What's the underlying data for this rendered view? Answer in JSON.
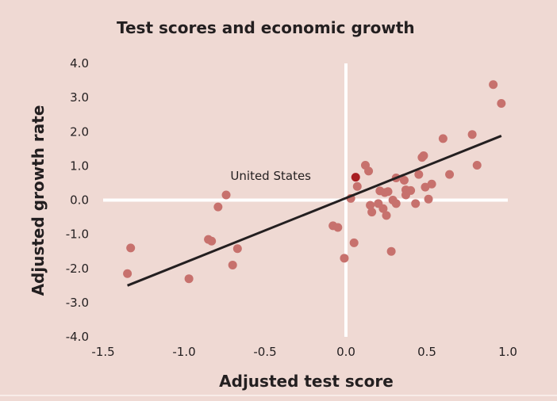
{
  "colors": {
    "background": "#efd9d3",
    "point": "#c7716d",
    "highlight_point": "#a81e22",
    "trend_line": "#231f20",
    "zero_axis": "#ffffff",
    "text": "#231f20"
  },
  "chart_data": {
    "type": "scatter",
    "title": "Test scores and economic growth",
    "xlabel": "Adjusted test score",
    "ylabel": "Adjusted growth rate",
    "xlim": [
      -1.5,
      1.0
    ],
    "ylim": [
      -4.0,
      4.0
    ],
    "x_ticks": [
      -1.5,
      -1.0,
      -0.5,
      0.0,
      0.5,
      1.0
    ],
    "x_tick_labels": [
      "-1.5",
      "-1.0",
      "-0.5",
      "0.0",
      "0.5",
      "1.0"
    ],
    "y_ticks": [
      4.0,
      3.0,
      2.0,
      1.0,
      0.0,
      -1.0,
      -2.0,
      -3.0,
      -4.0
    ],
    "y_tick_labels": [
      "4.0",
      "3.0",
      "2.0",
      "1.0",
      "0.0",
      "-1.0",
      "-2.0",
      "-3.0",
      "-4.0"
    ],
    "grid": false,
    "zero_lines": true,
    "points": [
      {
        "x": -1.35,
        "y": -2.15
      },
      {
        "x": -1.33,
        "y": -1.4
      },
      {
        "x": -0.97,
        "y": -2.3
      },
      {
        "x": -0.85,
        "y": -1.15
      },
      {
        "x": -0.83,
        "y": -1.2
      },
      {
        "x": -0.79,
        "y": -0.2
      },
      {
        "x": -0.74,
        "y": 0.15
      },
      {
        "x": -0.7,
        "y": -1.9
      },
      {
        "x": -0.67,
        "y": -1.42
      },
      {
        "x": -0.08,
        "y": -0.75
      },
      {
        "x": -0.05,
        "y": -0.8
      },
      {
        "x": -0.01,
        "y": -1.7
      },
      {
        "x": 0.03,
        "y": 0.05
      },
      {
        "x": 0.05,
        "y": -1.25
      },
      {
        "x": 0.07,
        "y": 0.4
      },
      {
        "x": 0.12,
        "y": 1.02
      },
      {
        "x": 0.14,
        "y": 0.85
      },
      {
        "x": 0.15,
        "y": -0.15
      },
      {
        "x": 0.16,
        "y": -0.35
      },
      {
        "x": 0.2,
        "y": -0.1
      },
      {
        "x": 0.21,
        "y": 0.27
      },
      {
        "x": 0.23,
        "y": -0.25
      },
      {
        "x": 0.24,
        "y": 0.22
      },
      {
        "x": 0.25,
        "y": -0.45
      },
      {
        "x": 0.26,
        "y": 0.25
      },
      {
        "x": 0.28,
        "y": -1.5
      },
      {
        "x": 0.29,
        "y": 0.0
      },
      {
        "x": 0.31,
        "y": -0.1
      },
      {
        "x": 0.31,
        "y": 0.65
      },
      {
        "x": 0.36,
        "y": 0.58
      },
      {
        "x": 0.37,
        "y": 0.15
      },
      {
        "x": 0.37,
        "y": 0.3
      },
      {
        "x": 0.4,
        "y": 0.28
      },
      {
        "x": 0.43,
        "y": -0.1
      },
      {
        "x": 0.45,
        "y": 0.75
      },
      {
        "x": 0.47,
        "y": 1.25
      },
      {
        "x": 0.48,
        "y": 1.3
      },
      {
        "x": 0.49,
        "y": 0.38
      },
      {
        "x": 0.51,
        "y": 0.03
      },
      {
        "x": 0.53,
        "y": 0.47
      },
      {
        "x": 0.6,
        "y": 1.8
      },
      {
        "x": 0.64,
        "y": 0.75
      },
      {
        "x": 0.78,
        "y": 1.92
      },
      {
        "x": 0.81,
        "y": 1.02
      },
      {
        "x": 0.91,
        "y": 3.38
      },
      {
        "x": 0.96,
        "y": 2.83
      }
    ],
    "highlight": {
      "label": "United States",
      "x": 0.06,
      "y": 0.67
    },
    "trend_line": {
      "x": [
        -1.35,
        0.96
      ],
      "y": [
        -2.5,
        1.88
      ]
    }
  }
}
